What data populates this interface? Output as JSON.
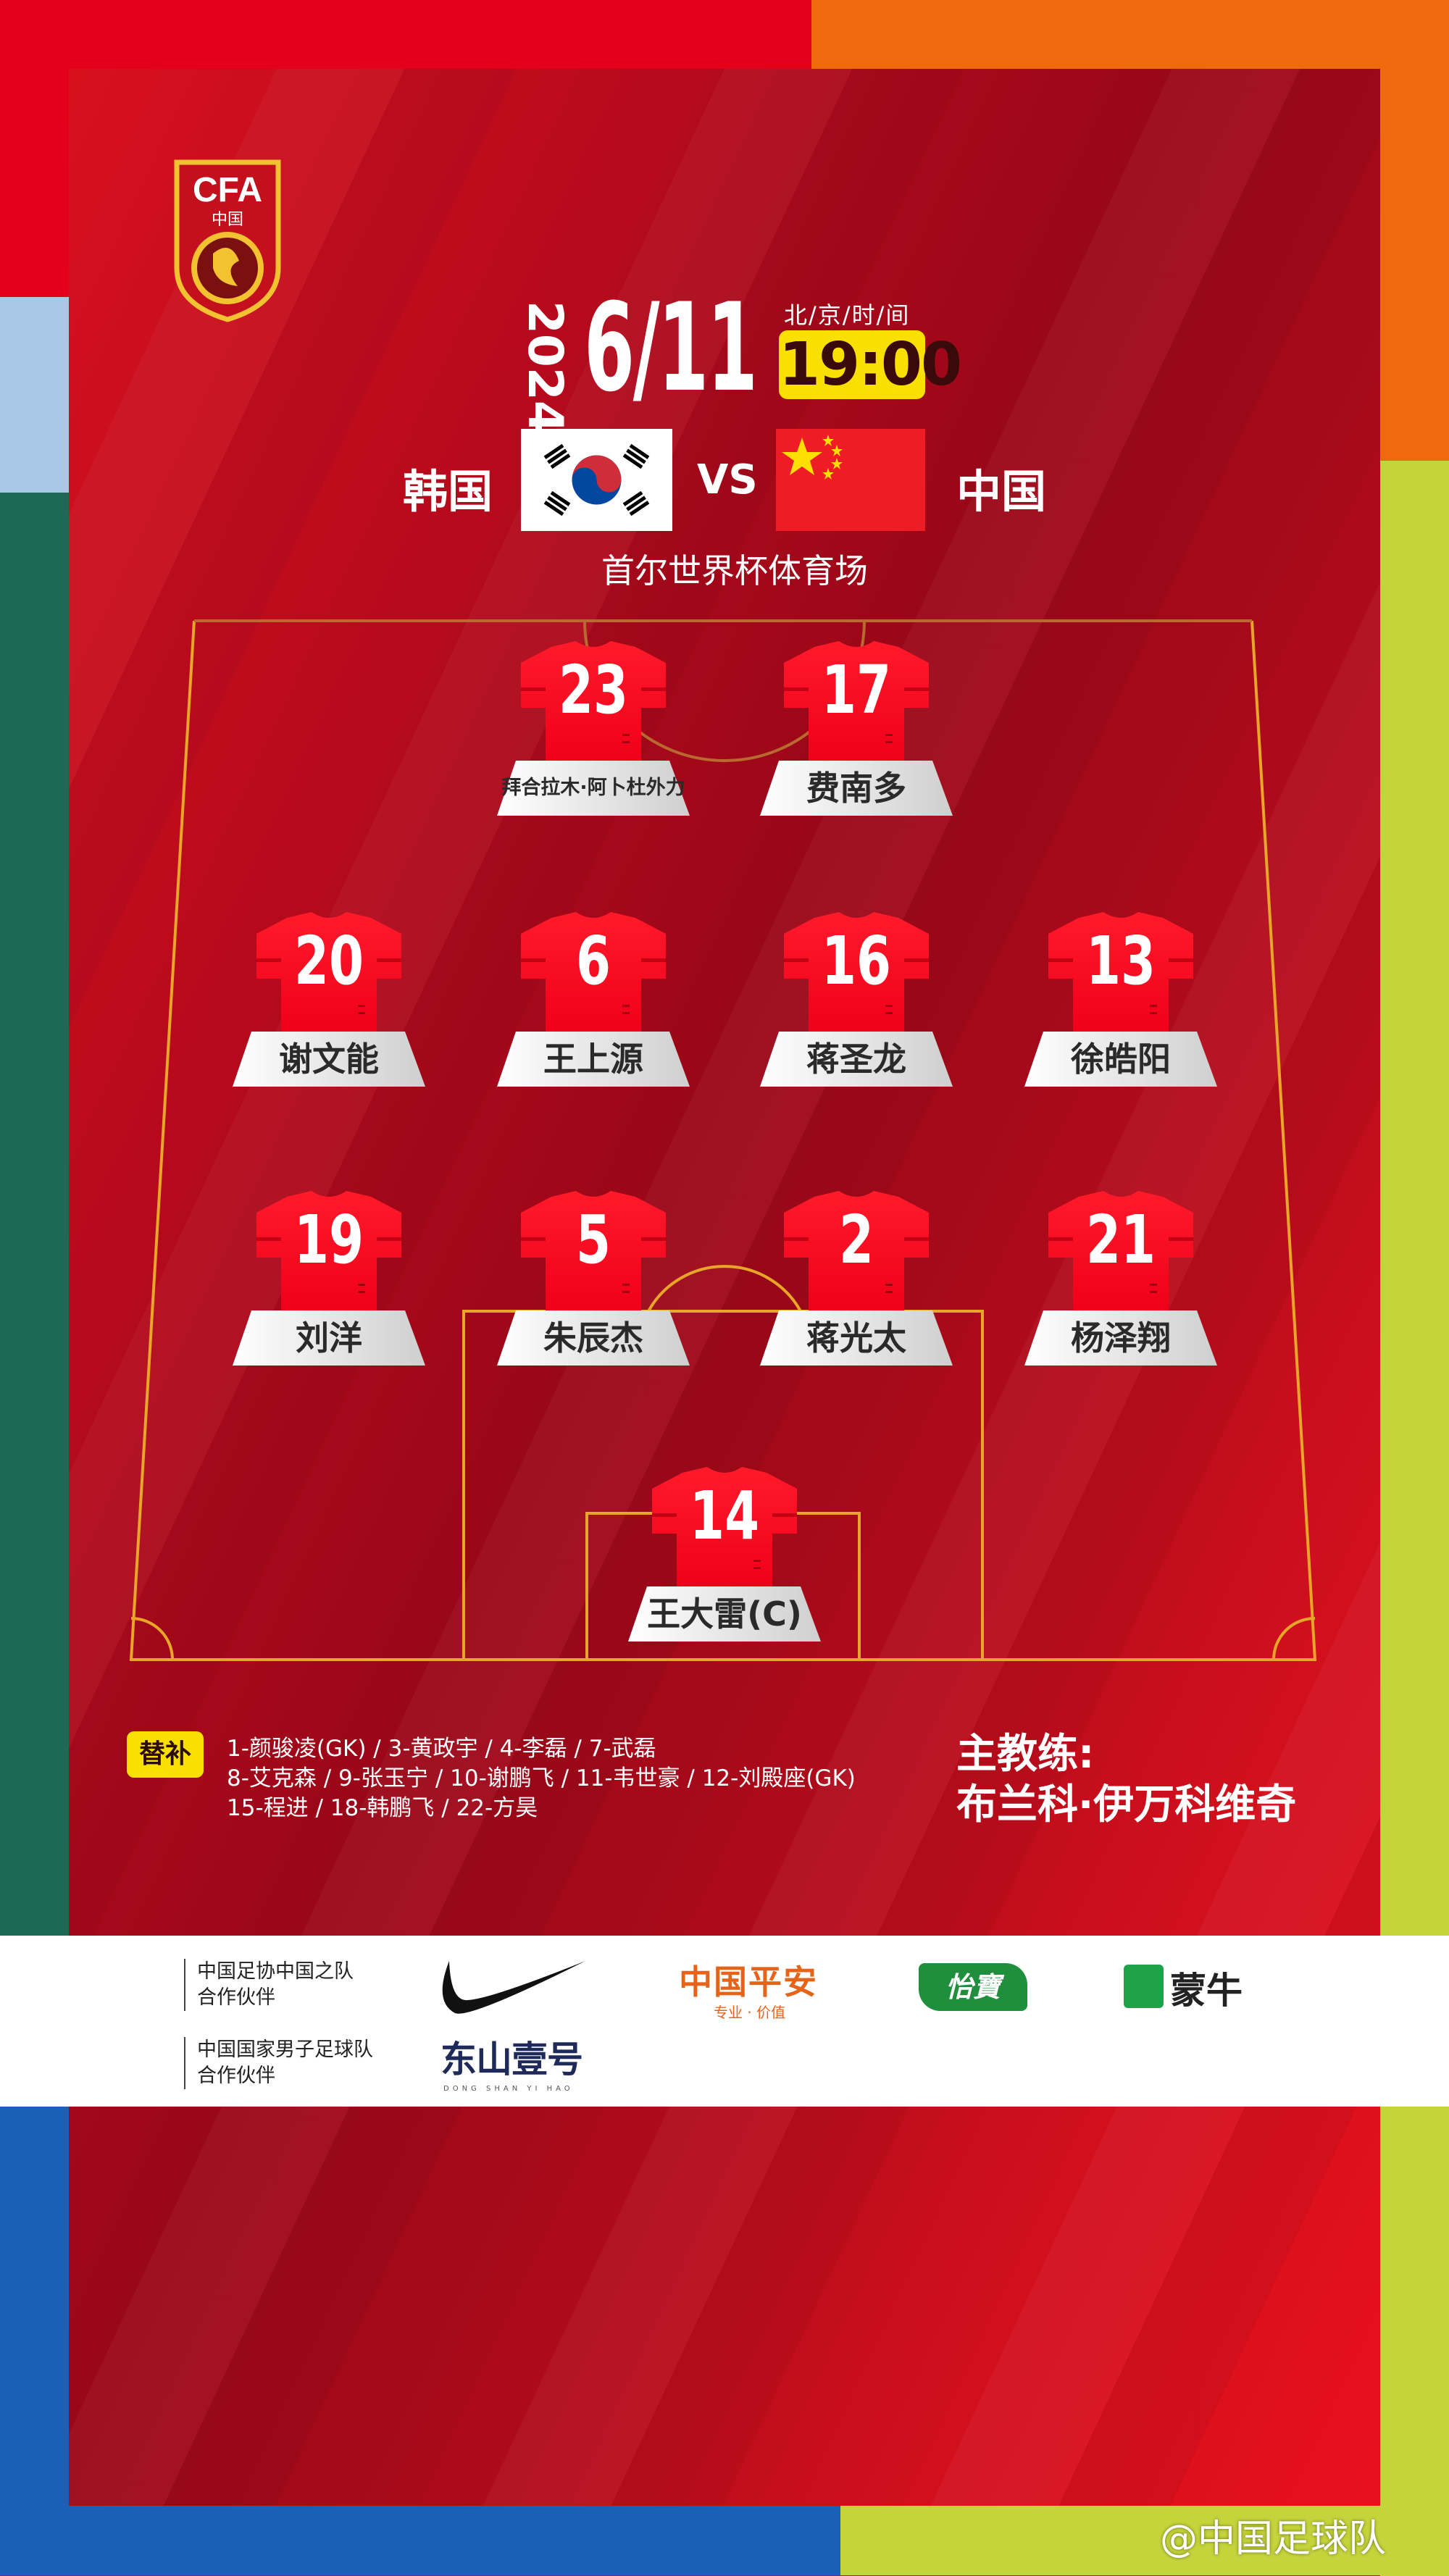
{
  "logo": {
    "text": "CFA",
    "subtext": "中国"
  },
  "match": {
    "year": "2024",
    "date": "6/11",
    "time_label": "北/京/时/间",
    "time": "19:00",
    "home_team": "韩国",
    "vs": "VS",
    "away_team": "中国",
    "stadium": "首尔世界杯体育场"
  },
  "players": [
    {
      "number": "23",
      "name": "拜合拉木·阿卜杜外力"
    },
    {
      "number": "17",
      "name": "费南多"
    },
    {
      "number": "20",
      "name": "谢文能"
    },
    {
      "number": "6",
      "name": "王上源"
    },
    {
      "number": "16",
      "name": "蒋圣龙"
    },
    {
      "number": "13",
      "name": "徐皓阳"
    },
    {
      "number": "19",
      "name": "刘洋"
    },
    {
      "number": "5",
      "name": "朱辰杰"
    },
    {
      "number": "2",
      "name": "蒋光太"
    },
    {
      "number": "21",
      "name": "杨泽翔"
    },
    {
      "number": "14",
      "name": "王大雷(C)"
    }
  ],
  "substitutes": {
    "label": "替补",
    "lines": [
      "1-颜骏凌(GK) / 3-黄政宇 / 4-李磊 / 7-武磊",
      "8-艾克森 / 9-张玉宁 / 10-谢鹏飞 / 11-韦世豪 / 12-刘殿座(GK)",
      "15-程进 / 18-韩鹏飞 / 22-方昊"
    ]
  },
  "coach": {
    "label": "主教练:",
    "name": "布兰科·伊万科维奇"
  },
  "sponsors": {
    "group1_label": [
      "中国足协中国之队",
      "合作伙伴"
    ],
    "group2_label": [
      "中国国家男子足球队",
      "合作伙伴"
    ],
    "pingan": "中国平安",
    "pingan_sub": "专业 · 价值",
    "yibao": "怡寶",
    "mengniu": "蒙牛",
    "dongshan": "东山壹号",
    "dongshan_sub": "DONG SHAN YI HAO"
  },
  "watermark": "@中国足球队",
  "colors": {
    "red": "#e4001a",
    "yellow": "#f9e000",
    "pitch_line": "#e8a628"
  }
}
